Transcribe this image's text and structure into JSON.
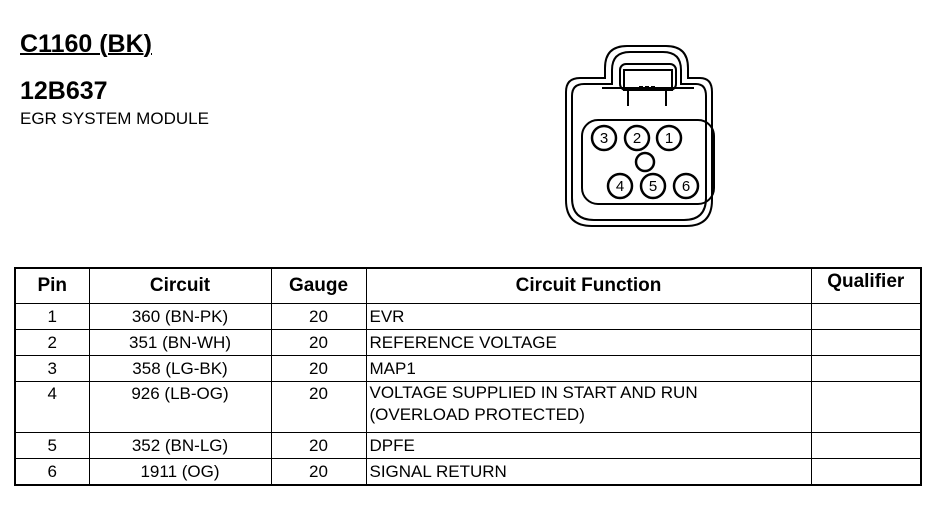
{
  "connector": {
    "id": "C1160 (BK)",
    "part_number": "12B637",
    "description": "EGR SYSTEM MODULE",
    "pin_labels": [
      "1",
      "2",
      "3",
      "4",
      "5",
      "6"
    ]
  },
  "table": {
    "headers": {
      "pin": "Pin",
      "circuit": "Circuit",
      "gauge": "Gauge",
      "function": "Circuit Function",
      "qualifier": "Qualifier"
    },
    "rows": [
      {
        "pin": "1",
        "circuit": "360 (BN-PK)",
        "gauge": "20",
        "function": "EVR",
        "function2": "",
        "qualifier": ""
      },
      {
        "pin": "2",
        "circuit": "351 (BN-WH)",
        "gauge": "20",
        "function": "REFERENCE VOLTAGE",
        "function2": "",
        "qualifier": ""
      },
      {
        "pin": "3",
        "circuit": "358 (LG-BK)",
        "gauge": "20",
        "function": "MAP1",
        "function2": "",
        "qualifier": ""
      },
      {
        "pin": "4",
        "circuit": "926 (LB-OG)",
        "gauge": "20",
        "function": "VOLTAGE SUPPLIED IN START AND RUN",
        "function2": "(OVERLOAD PROTECTED)",
        "qualifier": ""
      },
      {
        "pin": "5",
        "circuit": "352 (BN-LG)",
        "gauge": "20",
        "function": "DPFE",
        "function2": "",
        "qualifier": ""
      },
      {
        "pin": "6",
        "circuit": "1911 (OG)",
        "gauge": "20",
        "function": "SIGNAL RETURN",
        "function2": "",
        "qualifier": ""
      }
    ]
  }
}
